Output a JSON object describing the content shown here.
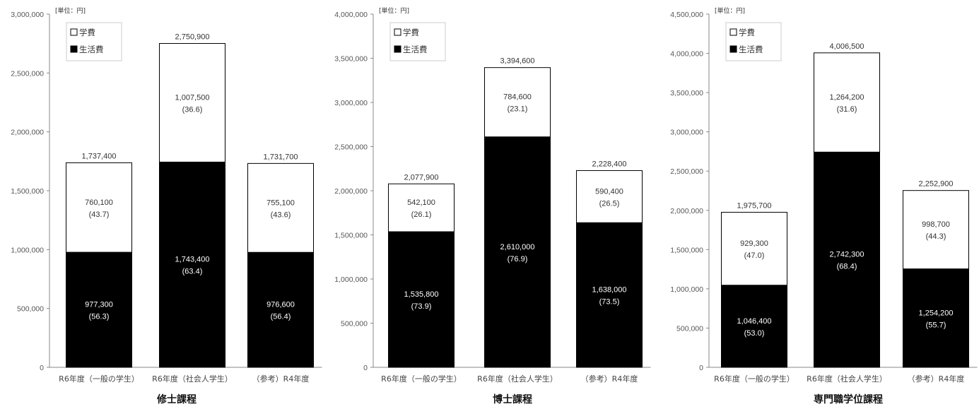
{
  "chart_data": [
    {
      "type": "bar",
      "stacked": true,
      "title": "修士課程",
      "unit_label": "[単位：円]",
      "categories": [
        "R6年度（一般の学生）",
        "R6年度（社会人学生）",
        "（参考）R4年度"
      ],
      "ylim": [
        0,
        3000000
      ],
      "yticks": [
        0,
        500000,
        1000000,
        1500000,
        2000000,
        2500000,
        3000000
      ],
      "ytick_labels": [
        "0",
        "500,000",
        "1,000,000",
        "1,500,000",
        "2,000,000",
        "2,500,000",
        "3,000,000"
      ],
      "series": [
        {
          "name": "生活費",
          "color": "#000000",
          "values": [
            977300,
            1743400,
            976600
          ],
          "labels": [
            "977,300",
            "1,743,400",
            "976,600"
          ],
          "percents": [
            "(56.3)",
            "(63.4)",
            "(56.4)"
          ]
        },
        {
          "name": "学費",
          "color": "#ffffff",
          "values": [
            760100,
            1007500,
            755100
          ],
          "labels": [
            "760,100",
            "1,007,500",
            "755,100"
          ],
          "percents": [
            "(43.7)",
            "(36.6)",
            "(43.6)"
          ]
        }
      ],
      "totals": [
        "1,737,400",
        "2,750,900",
        "1,731,700"
      ],
      "legend": [
        "学費",
        "生活費"
      ],
      "legend_position": "top-left",
      "grid": false
    },
    {
      "type": "bar",
      "stacked": true,
      "title": "博士課程",
      "unit_label": "[単位：円]",
      "categories": [
        "R6年度（一般の学生）",
        "R6年度（社会人学生）",
        "（参考）R4年度"
      ],
      "ylim": [
        0,
        4000000
      ],
      "yticks": [
        0,
        500000,
        1000000,
        1500000,
        2000000,
        2500000,
        3000000,
        3500000,
        4000000
      ],
      "ytick_labels": [
        "0",
        "500,000",
        "1,000,000",
        "1,500,000",
        "2,000,000",
        "2,500,000",
        "3,000,000",
        "3,500,000",
        "4,000,000"
      ],
      "series": [
        {
          "name": "生活費",
          "color": "#000000",
          "values": [
            1535800,
            2610000,
            1638000
          ],
          "labels": [
            "1,535,800",
            "2,610,000",
            "1,638,000"
          ],
          "percents": [
            "(73.9)",
            "(76.9)",
            "(73.5)"
          ]
        },
        {
          "name": "学費",
          "color": "#ffffff",
          "values": [
            542100,
            784600,
            590400
          ],
          "labels": [
            "542,100",
            "784,600",
            "590,400"
          ],
          "percents": [
            "(26.1)",
            "(23.1)",
            "(26.5)"
          ]
        }
      ],
      "totals": [
        "2,077,900",
        "3,394,600",
        "2,228,400"
      ],
      "legend": [
        "学費",
        "生活費"
      ],
      "legend_position": "top-left",
      "grid": false
    },
    {
      "type": "bar",
      "stacked": true,
      "title": "専門職学位課程",
      "unit_label": "[単位：円]",
      "categories": [
        "R6年度（一般の学生）",
        "R6年度（社会人学生）",
        "（参考）R4年度"
      ],
      "ylim": [
        0,
        4500000
      ],
      "yticks": [
        0,
        500000,
        1000000,
        1500000,
        2000000,
        2500000,
        3000000,
        3500000,
        4000000,
        4500000
      ],
      "ytick_labels": [
        "0",
        "500,000",
        "1,000,000",
        "1,500,000",
        "2,000,000",
        "2,500,000",
        "3,000,000",
        "3,500,000",
        "4,000,000",
        "4,500,000"
      ],
      "series": [
        {
          "name": "生活費",
          "color": "#000000",
          "values": [
            1046400,
            2742300,
            1254200
          ],
          "labels": [
            "1,046,400",
            "2,742,300",
            "1,254,200"
          ],
          "percents": [
            "(53.0)",
            "(68.4)",
            "(55.7)"
          ]
        },
        {
          "name": "学費",
          "color": "#ffffff",
          "values": [
            929300,
            1264200,
            998700
          ],
          "labels": [
            "929,300",
            "1,264,200",
            "998,700"
          ],
          "percents": [
            "(47.0)",
            "(31.6)",
            "(44.3)"
          ]
        }
      ],
      "totals": [
        "1,975,700",
        "4,006,500",
        "2,252,900"
      ],
      "legend": [
        "学費",
        "生活費"
      ],
      "legend_position": "top-left",
      "grid": false
    }
  ]
}
